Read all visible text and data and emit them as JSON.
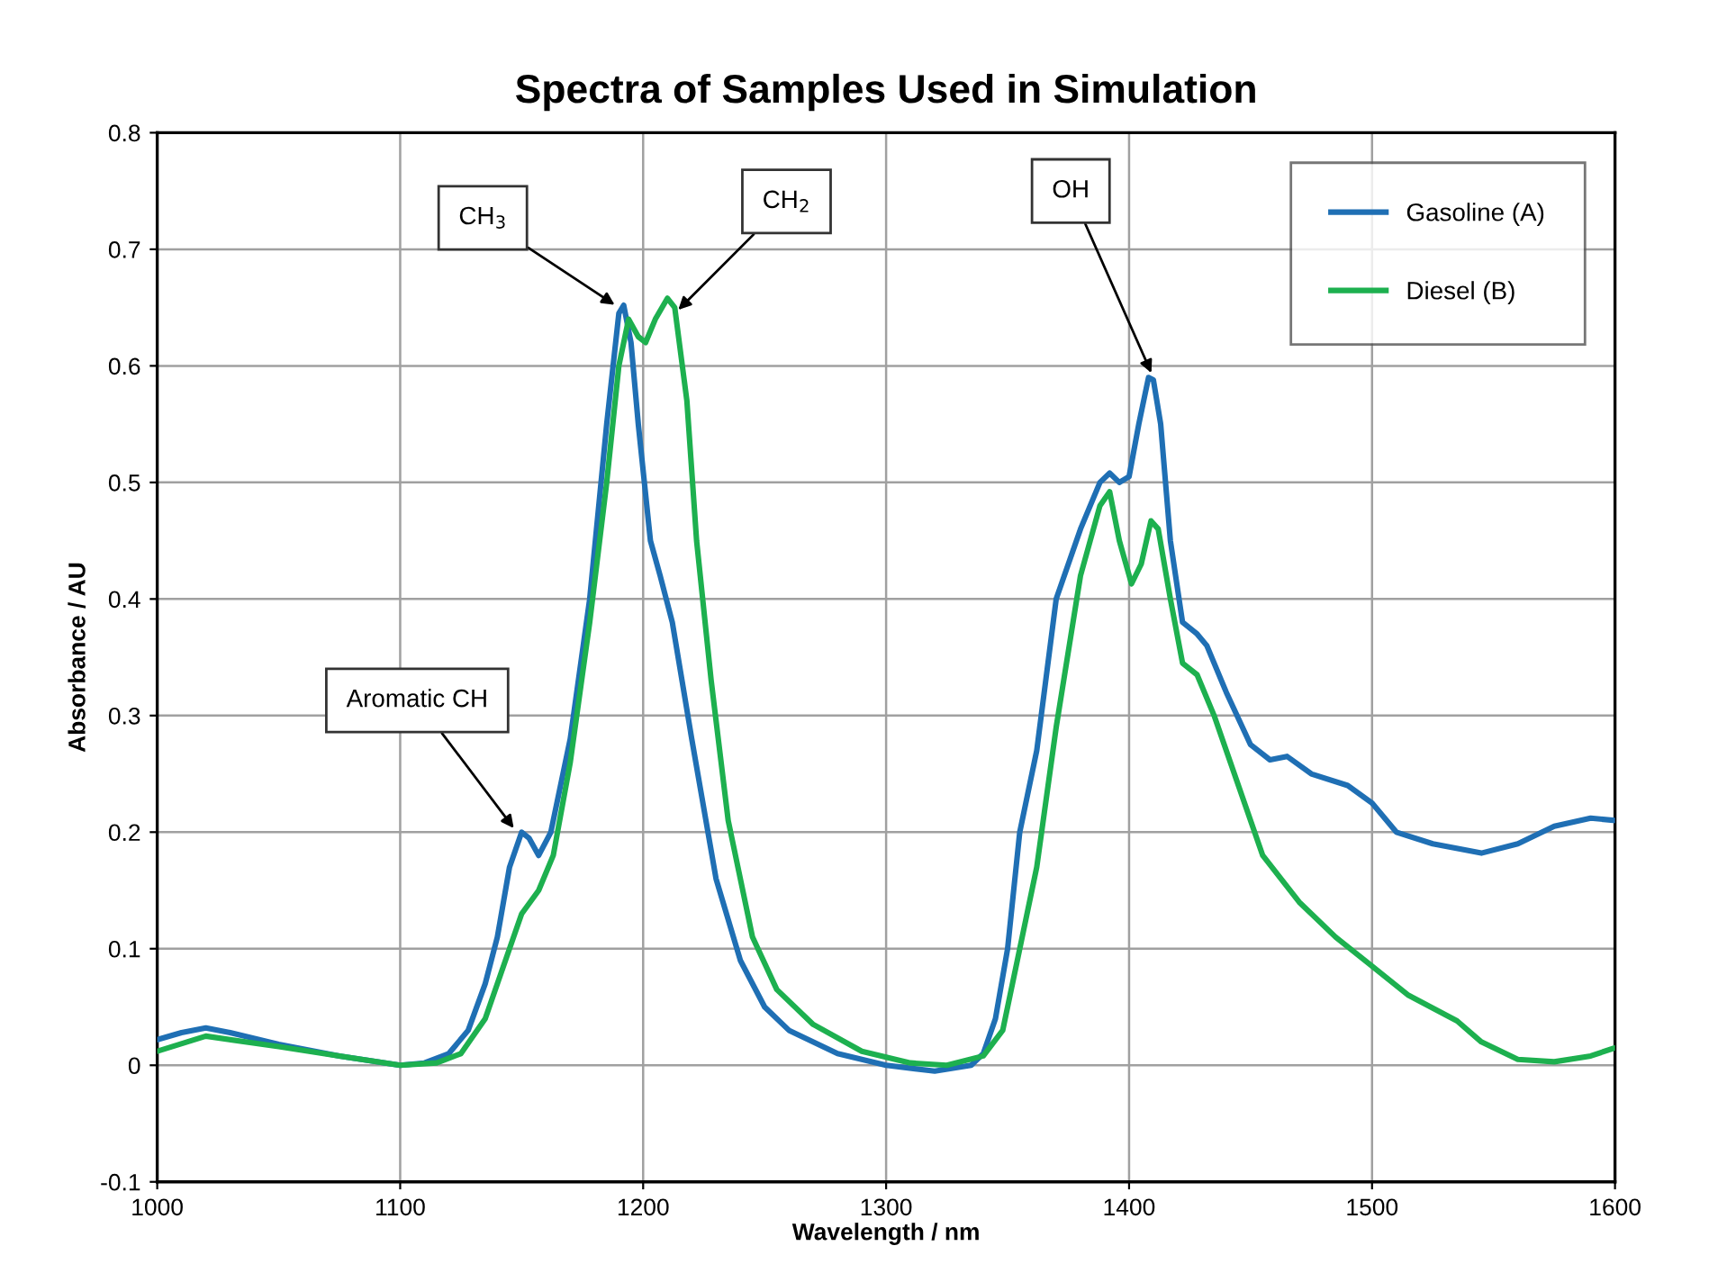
{
  "chart_data": {
    "type": "line",
    "title": "Spectra of Samples Used in Simulation",
    "xlabel": "Wavelength / nm",
    "ylabel": "Absorbance / AU",
    "xlim": [
      1000,
      1600
    ],
    "xticks": [
      1000,
      1100,
      1200,
      1300,
      1400,
      1500,
      1600
    ],
    "ylim": [
      -0.1,
      0.8
    ],
    "yticks": [
      -0.1,
      0,
      0.1,
      0.2,
      0.3,
      0.4,
      0.5,
      0.6,
      0.7,
      0.8
    ],
    "grid": true,
    "legend": "top right",
    "marker": "none",
    "line_style": "solid",
    "series": [
      {
        "name": "Gasoline (A)",
        "color": "#1f6fb4",
        "x": [
          1000,
          1010,
          1020,
          1030,
          1050,
          1075,
          1100,
          1110,
          1120,
          1128,
          1135,
          1140,
          1145,
          1150,
          1153,
          1157,
          1162,
          1170,
          1178,
          1185,
          1190,
          1192,
          1195,
          1198,
          1203,
          1207,
          1212,
          1220,
          1230,
          1240,
          1250,
          1260,
          1280,
          1300,
          1320,
          1335,
          1340,
          1345,
          1350,
          1355,
          1362,
          1370,
          1380,
          1388,
          1392,
          1396,
          1400,
          1404,
          1408,
          1410,
          1413,
          1417,
          1422,
          1428,
          1432,
          1440,
          1450,
          1458,
          1465,
          1475,
          1490,
          1500,
          1510,
          1525,
          1545,
          1560,
          1575,
          1590,
          1600
        ],
        "values": [
          0.022,
          0.028,
          0.032,
          0.028,
          0.018,
          0.008,
          0,
          0.002,
          0.01,
          0.03,
          0.07,
          0.11,
          0.17,
          0.2,
          0.195,
          0.18,
          0.2,
          0.28,
          0.4,
          0.55,
          0.645,
          0.652,
          0.62,
          0.55,
          0.45,
          0.42,
          0.38,
          0.28,
          0.16,
          0.09,
          0.05,
          0.03,
          0.01,
          0,
          -0.005,
          0,
          0.01,
          0.04,
          0.1,
          0.2,
          0.27,
          0.4,
          0.46,
          0.5,
          0.508,
          0.5,
          0.505,
          0.55,
          0.59,
          0.588,
          0.55,
          0.45,
          0.38,
          0.37,
          0.36,
          0.32,
          0.275,
          0.262,
          0.265,
          0.25,
          0.24,
          0.225,
          0.2,
          0.19,
          0.182,
          0.19,
          0.205,
          0.212,
          0.21
        ]
      },
      {
        "name": "Diesel (B)",
        "color": "#1db04f",
        "x": [
          1000,
          1020,
          1050,
          1075,
          1100,
          1115,
          1125,
          1135,
          1145,
          1150,
          1157,
          1163,
          1170,
          1178,
          1185,
          1190,
          1194,
          1198,
          1201,
          1205,
          1210,
          1213,
          1218,
          1222,
          1228,
          1235,
          1245,
          1255,
          1270,
          1290,
          1310,
          1325,
          1340,
          1348,
          1355,
          1362,
          1370,
          1380,
          1388,
          1392,
          1396,
          1401,
          1405,
          1409,
          1412,
          1417,
          1422,
          1428,
          1435,
          1445,
          1455,
          1470,
          1485,
          1500,
          1515,
          1535,
          1545,
          1560,
          1575,
          1590,
          1600
        ],
        "values": [
          0.012,
          0.025,
          0.016,
          0.008,
          0,
          0.002,
          0.01,
          0.04,
          0.1,
          0.13,
          0.15,
          0.18,
          0.26,
          0.38,
          0.5,
          0.6,
          0.64,
          0.625,
          0.62,
          0.64,
          0.658,
          0.65,
          0.57,
          0.45,
          0.33,
          0.21,
          0.11,
          0.065,
          0.035,
          0.012,
          0.002,
          0,
          0.008,
          0.03,
          0.1,
          0.17,
          0.29,
          0.42,
          0.48,
          0.492,
          0.45,
          0.413,
          0.43,
          0.467,
          0.46,
          0.4,
          0.345,
          0.335,
          0.3,
          0.24,
          0.18,
          0.14,
          0.11,
          0.085,
          0.06,
          0.038,
          0.02,
          0.005,
          0.003,
          0.008,
          0.015
        ]
      }
    ],
    "annotations": [
      {
        "text": "Aromatic CH",
        "x": 1148,
        "y": 0.2
      },
      {
        "text": "CH$_{3}$",
        "x": 1190,
        "y": 0.65
      },
      {
        "text": "CH$_{2}$",
        "x": 1213,
        "y": 0.645
      },
      {
        "text": "OH",
        "x": 1410,
        "y": 0.59
      }
    ]
  }
}
